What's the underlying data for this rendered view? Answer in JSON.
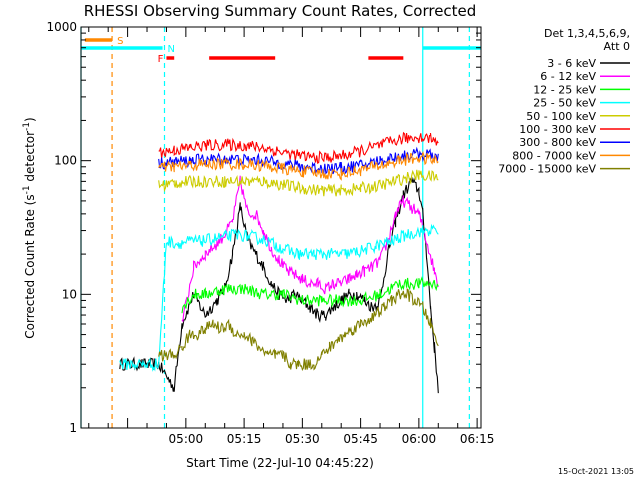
{
  "chart_data": {
    "type": "line",
    "title": "RHESSI Observing Summary Count Rates, Corrected",
    "xlabel": "Start Time (22-Jul-10 04:45:22)",
    "ylabel_main": "Corrected Count Rate (s",
    "ylabel_exp1": "-1",
    "ylabel_mid": " detector",
    "ylabel_exp2": "-1",
    "ylabel_end": ")",
    "y_scale": "log",
    "ylim": [
      1,
      1000
    ],
    "y_tick_labels": [
      {
        "label": "1",
        "value": 1
      },
      {
        "label": "10",
        "value": 10
      },
      {
        "label": "100",
        "value": 100
      },
      {
        "label": "1000",
        "value": 1000
      }
    ],
    "xlim_min": [
      -12,
      91
    ],
    "x_tick_labels": [
      {
        "label": "05:00",
        "min": 15
      },
      {
        "label": "05:15",
        "min": 30
      },
      {
        "label": "05:30",
        "min": 45
      },
      {
        "label": "05:45",
        "min": 60
      },
      {
        "label": "06:00",
        "min": 75
      },
      {
        "label": "06:15",
        "min": 90
      }
    ],
    "grid": false,
    "legend_position": "right",
    "legend_header": [
      "Det 1,3,4,5,6,9,",
      "Att 0"
    ],
    "timestamp": "15-Oct-2021 13:05",
    "series": [
      {
        "name": "3 - 6 keV",
        "color": "#000000"
      },
      {
        "name": "6 - 12 keV",
        "color": "#ff00ff"
      },
      {
        "name": "12 - 25 keV",
        "color": "#00ff00"
      },
      {
        "name": "25 - 50 keV",
        "color": "#00ffff"
      },
      {
        "name": "50 - 100 keV",
        "color": "#cccc00"
      },
      {
        "name": "100 - 300 keV",
        "color": "#ff0000"
      },
      {
        "name": "300 - 800 keV",
        "color": "#0000ff"
      },
      {
        "name": "800 - 7000 keV",
        "color": "#ff8800"
      },
      {
        "name": "7000 - 15000 keV",
        "color": "#808000"
      }
    ],
    "series_points_min": [
      [
        [
          -2,
          3
        ],
        [
          5,
          3
        ],
        [
          8,
          3
        ],
        [
          12,
          2
        ],
        [
          14,
          6
        ],
        [
          17,
          10
        ],
        [
          20,
          7
        ],
        [
          23,
          9
        ],
        [
          25,
          11
        ],
        [
          27,
          20
        ],
        [
          29,
          45
        ],
        [
          31,
          25
        ],
        [
          33,
          20
        ],
        [
          35,
          16
        ],
        [
          37,
          12
        ],
        [
          39,
          10
        ],
        [
          41,
          9
        ],
        [
          43,
          10
        ],
        [
          45,
          9
        ],
        [
          47,
          8
        ],
        [
          49,
          7
        ],
        [
          51,
          7
        ],
        [
          53,
          8
        ],
        [
          55,
          9
        ],
        [
          57,
          10
        ],
        [
          59,
          10
        ],
        [
          61,
          9
        ],
        [
          63,
          8
        ],
        [
          65,
          9
        ],
        [
          67,
          20
        ],
        [
          69,
          35
        ],
        [
          71,
          55
        ],
        [
          73,
          70
        ],
        [
          75,
          60
        ],
        [
          76,
          40
        ],
        [
          77,
          20
        ],
        [
          78,
          8
        ],
        [
          79,
          4
        ],
        [
          80,
          2
        ]
      ],
      [
        [
          14,
          6
        ],
        [
          17,
          16
        ],
        [
          20,
          20
        ],
        [
          23,
          24
        ],
        [
          25,
          28
        ],
        [
          27,
          35
        ],
        [
          29,
          70
        ],
        [
          31,
          40
        ],
        [
          33,
          40
        ],
        [
          35,
          30
        ],
        [
          37,
          22
        ],
        [
          39,
          18
        ],
        [
          41,
          15
        ],
        [
          43,
          14
        ],
        [
          45,
          13
        ],
        [
          47,
          12
        ],
        [
          49,
          12
        ],
        [
          51,
          11
        ],
        [
          53,
          12
        ],
        [
          55,
          12
        ],
        [
          57,
          13
        ],
        [
          59,
          14
        ],
        [
          61,
          15
        ],
        [
          63,
          16
        ],
        [
          65,
          18
        ],
        [
          67,
          25
        ],
        [
          69,
          40
        ],
        [
          71,
          50
        ],
        [
          73,
          45
        ],
        [
          75,
          40
        ],
        [
          77,
          25
        ],
        [
          79,
          15
        ],
        [
          80,
          12
        ]
      ],
      [
        [
          14,
          8
        ],
        [
          17,
          10
        ],
        [
          20,
          10
        ],
        [
          25,
          11
        ],
        [
          30,
          11
        ],
        [
          35,
          10
        ],
        [
          40,
          10
        ],
        [
          45,
          9
        ],
        [
          50,
          9
        ],
        [
          55,
          9
        ],
        [
          60,
          9
        ],
        [
          65,
          10
        ],
        [
          70,
          12
        ],
        [
          75,
          12
        ],
        [
          80,
          12
        ]
      ],
      [
        [
          -2,
          3
        ],
        [
          4,
          3
        ],
        [
          8,
          3
        ],
        [
          10,
          25
        ],
        [
          13,
          24
        ],
        [
          16,
          25
        ],
        [
          19,
          25
        ],
        [
          22,
          26
        ],
        [
          25,
          27
        ],
        [
          28,
          28
        ],
        [
          32,
          27
        ],
        [
          36,
          25
        ],
        [
          40,
          22
        ],
        [
          44,
          20
        ],
        [
          48,
          20
        ],
        [
          52,
          20
        ],
        [
          56,
          20
        ],
        [
          60,
          21
        ],
        [
          64,
          23
        ],
        [
          68,
          25
        ],
        [
          72,
          28
        ],
        [
          76,
          30
        ],
        [
          80,
          30
        ]
      ],
      [
        [
          8,
          65
        ],
        [
          12,
          68
        ],
        [
          16,
          70
        ],
        [
          20,
          70
        ],
        [
          25,
          70
        ],
        [
          30,
          70
        ],
        [
          35,
          70
        ],
        [
          40,
          66
        ],
        [
          45,
          62
        ],
        [
          50,
          60
        ],
        [
          55,
          60
        ],
        [
          60,
          62
        ],
        [
          65,
          65
        ],
        [
          70,
          72
        ],
        [
          75,
          78
        ],
        [
          80,
          75
        ]
      ],
      [
        [
          8,
          115
        ],
        [
          12,
          120
        ],
        [
          16,
          125
        ],
        [
          20,
          130
        ],
        [
          25,
          132
        ],
        [
          30,
          130
        ],
        [
          35,
          125
        ],
        [
          40,
          115
        ],
        [
          45,
          108
        ],
        [
          50,
          105
        ],
        [
          55,
          108
        ],
        [
          60,
          118
        ],
        [
          65,
          130
        ],
        [
          70,
          145
        ],
        [
          75,
          150
        ],
        [
          78,
          148
        ],
        [
          80,
          140
        ]
      ],
      [
        [
          8,
          95
        ],
        [
          12,
          98
        ],
        [
          16,
          100
        ],
        [
          20,
          102
        ],
        [
          25,
          103
        ],
        [
          30,
          102
        ],
        [
          35,
          100
        ],
        [
          40,
          95
        ],
        [
          45,
          90
        ],
        [
          50,
          88
        ],
        [
          55,
          88
        ],
        [
          60,
          92
        ],
        [
          65,
          100
        ],
        [
          70,
          108
        ],
        [
          75,
          112
        ],
        [
          80,
          108
        ]
      ],
      [
        [
          8,
          88
        ],
        [
          12,
          90
        ],
        [
          16,
          92
        ],
        [
          20,
          94
        ],
        [
          25,
          95
        ],
        [
          30,
          94
        ],
        [
          35,
          92
        ],
        [
          40,
          87
        ],
        [
          45,
          83
        ],
        [
          50,
          80
        ],
        [
          55,
          80
        ],
        [
          60,
          85
        ],
        [
          65,
          92
        ],
        [
          70,
          100
        ],
        [
          75,
          105
        ],
        [
          80,
          100
        ]
      ],
      [
        [
          8,
          3.5
        ],
        [
          12,
          3.5
        ],
        [
          14,
          4
        ],
        [
          16,
          5
        ],
        [
          18,
          5
        ],
        [
          20,
          5.5
        ],
        [
          22,
          6
        ],
        [
          24,
          5.5
        ],
        [
          26,
          6
        ],
        [
          28,
          5
        ],
        [
          30,
          5
        ],
        [
          32,
          4.5
        ],
        [
          34,
          4
        ],
        [
          36,
          3.5
        ],
        [
          38,
          3.5
        ],
        [
          40,
          3.5
        ],
        [
          42,
          3
        ],
        [
          44,
          3
        ],
        [
          46,
          3
        ],
        [
          48,
          3
        ],
        [
          50,
          3.5
        ],
        [
          52,
          4
        ],
        [
          54,
          4.5
        ],
        [
          56,
          5
        ],
        [
          58,
          5.5
        ],
        [
          60,
          6
        ],
        [
          62,
          6.5
        ],
        [
          64,
          7
        ],
        [
          66,
          8
        ],
        [
          68,
          9
        ],
        [
          70,
          10
        ],
        [
          72,
          10
        ],
        [
          74,
          9
        ],
        [
          76,
          8
        ],
        [
          78,
          6
        ],
        [
          80,
          4
        ]
      ]
    ],
    "state_bars": [
      {
        "label": "S",
        "color": "#ff8800",
        "start_min": -11,
        "end_min": -4,
        "level": 1,
        "label_side": "end"
      },
      {
        "label": "N",
        "color": "#00ffff",
        "start_min": -12,
        "end_min": 9,
        "level": 2,
        "label_side": "end"
      },
      {
        "label": "N",
        "color": "#00ffff",
        "start_min": 76,
        "end_min": 91,
        "level": 2,
        "label_side": "none"
      },
      {
        "label": "F",
        "color": "#ff0000",
        "start_min": 10,
        "end_min": 12,
        "level": 3,
        "label_side": "start"
      },
      {
        "label": "",
        "color": "#ff0000",
        "start_min": 21,
        "end_min": 38,
        "level": 3,
        "label_side": "none"
      },
      {
        "label": "",
        "color": "#ff0000",
        "start_min": 62,
        "end_min": 71,
        "level": 3,
        "label_side": "none"
      }
    ],
    "vertical_markers": [
      {
        "min": -12,
        "color": "#00ffff",
        "dash": "solid"
      },
      {
        "min": -4,
        "color": "#ff8800",
        "dash": "dashed"
      },
      {
        "min": 9.5,
        "color": "#00ffff",
        "dash": "dashed"
      },
      {
        "min": 76,
        "color": "#00ffff",
        "dash": "solid"
      },
      {
        "min": 88,
        "color": "#00ffff",
        "dash": "dashed"
      }
    ]
  }
}
